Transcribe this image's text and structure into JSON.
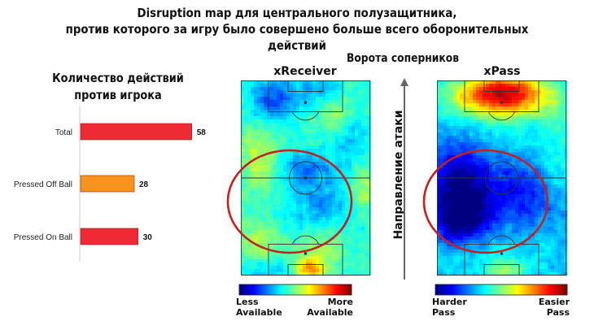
{
  "title_line1": "Disruption map для центрального полузащитника,",
  "title_line2": "против которого за игру было совершено больше всего оборонительных действий",
  "chart_data": [
    {
      "type": "bar",
      "title_line1": "Количество действий",
      "title_line2": "против игрока",
      "orientation": "horizontal",
      "categories": [
        "Total",
        "Pressed Off Ball",
        "Pressed On Ball"
      ],
      "values": [
        58,
        28,
        30
      ],
      "colors": [
        "#ee2a35",
        "#f7941d",
        "#ee2a35"
      ],
      "xlim": [
        0,
        70
      ]
    },
    {
      "type": "heatmap",
      "title": "xReceiver",
      "colorbar_min_label_line1": "Less",
      "colorbar_min_label_line2": "Available",
      "colorbar_max_label_line1": "More",
      "colorbar_max_label_line2": "Available"
    },
    {
      "type": "heatmap",
      "title": "xPass",
      "colorbar_min_label_line1": "Harder",
      "colorbar_min_label_line2": "Pass",
      "colorbar_max_label_line1": "Easier",
      "colorbar_max_label_line2": "Pass"
    }
  ],
  "goal_label": "Ворота соперников",
  "direction_label": "Направление атаки",
  "colors": {
    "bar_red": "#ee2a35",
    "bar_orange": "#f7941d",
    "highlight_ring": "#c81e1e",
    "pitch_line": "#333333"
  }
}
